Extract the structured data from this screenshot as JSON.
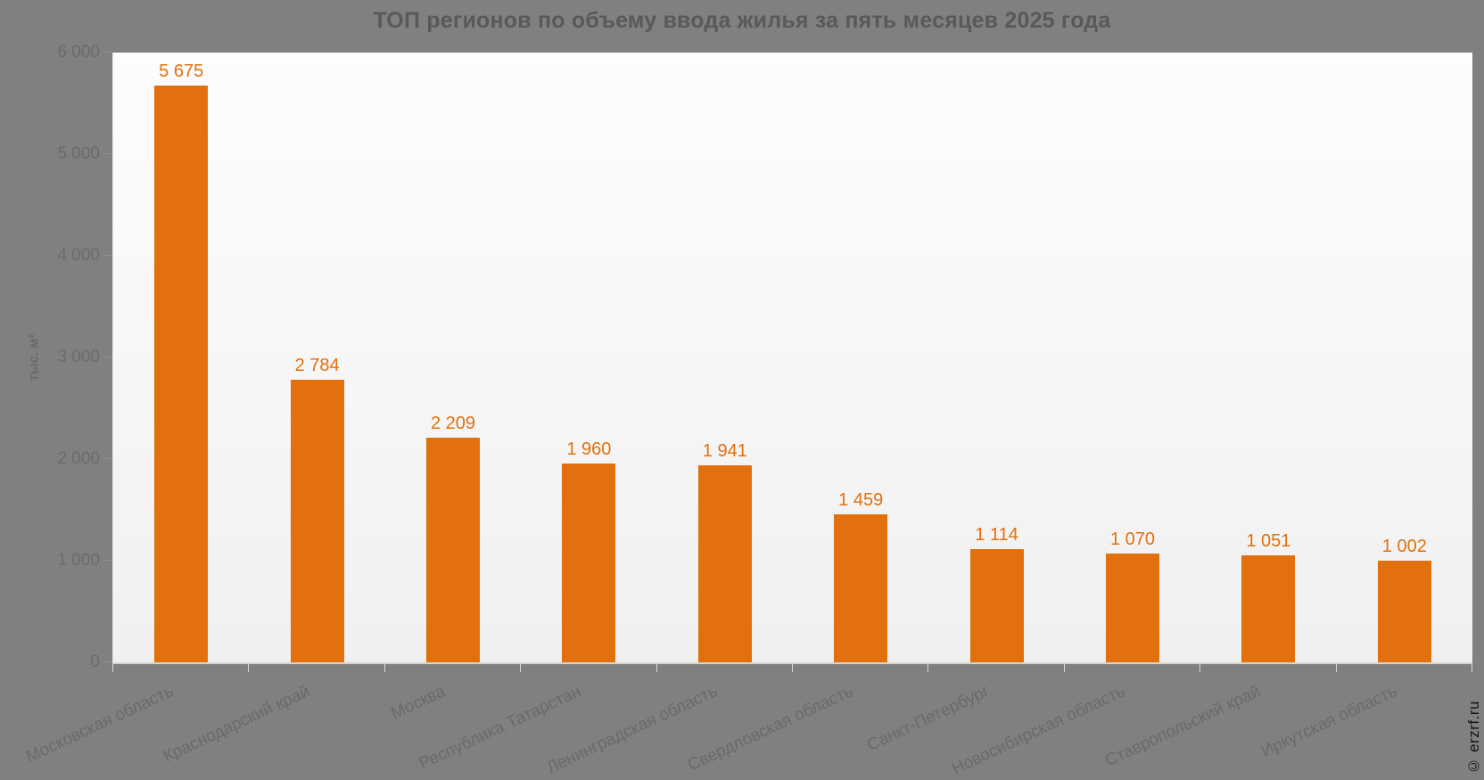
{
  "title": "ТОП регионов по объему ввода жилья за пять месяцев 2025 года",
  "watermark": "© erzrf.ru",
  "y_axis": {
    "label": "тыс. м²",
    "ticks": [
      {
        "value": 0,
        "label": "0"
      },
      {
        "value": 1000,
        "label": "1 000"
      },
      {
        "value": 2000,
        "label": "2 000"
      },
      {
        "value": 3000,
        "label": "3 000"
      },
      {
        "value": 4000,
        "label": "4 000"
      },
      {
        "value": 5000,
        "label": "5 000"
      },
      {
        "value": 6000,
        "label": "6 000"
      }
    ]
  },
  "chart_data": {
    "type": "bar",
    "title": "ТОП регионов по объему ввода жилья за пять месяцев 2025 года",
    "categories": [
      "Московская область",
      "Краснодарский край",
      "Москва",
      "Республика Татарстан",
      "Ленинградская область",
      "Свердловская область",
      "Санкт-Петербург",
      "Новосибирская область",
      "Ставропольский край",
      "Иркутская область"
    ],
    "values": [
      5675,
      2784,
      2209,
      1960,
      1941,
      1459,
      1114,
      1070,
      1051,
      1002
    ],
    "value_labels": [
      "5 675",
      "2 784",
      "2 209",
      "1 960",
      "1 941",
      "1 459",
      "1 114",
      "1 070",
      "1 051",
      "1 002"
    ],
    "xlabel": "",
    "ylabel": "тыс. м²",
    "ylim": [
      0,
      6000
    ],
    "grid": false,
    "legend": "none",
    "x_label_rotation": -25
  },
  "colors": {
    "background": "#808080",
    "bar": "#e2700c",
    "value_label": "#e2700c",
    "title_text": "#59595b",
    "axis_text": "#6a6a6a",
    "tick_line": "#d9d9d9",
    "watermark_text": "#141414",
    "plot_gradient_top": "#fdfdfd",
    "plot_gradient_bottom": "#f0f0f0"
  }
}
